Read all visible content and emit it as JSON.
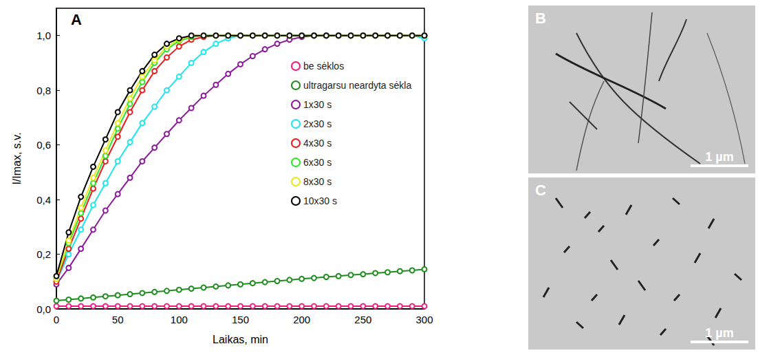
{
  "chart_data": {
    "type": "line",
    "title": "A",
    "x_label": "Laikas, min",
    "y_label": "I/Imax, s.v.",
    "x": [
      0,
      10,
      20,
      30,
      40,
      50,
      60,
      70,
      80,
      90,
      100,
      110,
      120,
      130,
      140,
      150,
      160,
      170,
      180,
      190,
      200,
      210,
      220,
      230,
      240,
      250,
      260,
      270,
      280,
      290,
      300
    ],
    "series": [
      {
        "name": "be sėklos",
        "color": "#ee1b80",
        "marker": "circle_open",
        "values": [
          0.01,
          0.01,
          0.01,
          0.01,
          0.01,
          0.01,
          0.01,
          0.01,
          0.01,
          0.01,
          0.01,
          0.01,
          0.01,
          0.01,
          0.01,
          0.01,
          0.01,
          0.01,
          0.01,
          0.01,
          0.01,
          0.01,
          0.01,
          0.01,
          0.01,
          0.01,
          0.01,
          0.01,
          0.01,
          0.01,
          0.01
        ]
      },
      {
        "name": "ultragarsu neardyta sėkla",
        "color": "#1e8c1e",
        "marker": "circle_open",
        "values": [
          0.03,
          0.034,
          0.038,
          0.042,
          0.046,
          0.05,
          0.054,
          0.058,
          0.062,
          0.066,
          0.07,
          0.074,
          0.078,
          0.082,
          0.086,
          0.09,
          0.094,
          0.098,
          0.102,
          0.106,
          0.11,
          0.113,
          0.117,
          0.12,
          0.124,
          0.127,
          0.131,
          0.134,
          0.138,
          0.141,
          0.145
        ]
      },
      {
        "name": "1x30 s",
        "color": "#8b1a9b",
        "marker": "circle_open",
        "values": [
          0.09,
          0.15,
          0.22,
          0.29,
          0.36,
          0.42,
          0.48,
          0.54,
          0.59,
          0.64,
          0.69,
          0.735,
          0.78,
          0.82,
          0.86,
          0.895,
          0.925,
          0.95,
          0.97,
          0.985,
          0.995,
          1.0,
          1.0,
          1.0,
          1.0,
          1.0,
          1.0,
          1.0,
          1.0,
          1.0,
          1.0
        ]
      },
      {
        "name": "2x30 s",
        "color": "#1ee6ee",
        "marker": "circle_open",
        "values": [
          0.1,
          0.2,
          0.29,
          0.38,
          0.46,
          0.54,
          0.61,
          0.68,
          0.74,
          0.8,
          0.85,
          0.9,
          0.94,
          0.97,
          0.99,
          1.0,
          1.0,
          1.0,
          1.0,
          1.0,
          1.0,
          1.0,
          1.0,
          1.0,
          1.0,
          1.0,
          1.0,
          1.0,
          1.0,
          1.0,
          0.99
        ]
      },
      {
        "name": "4x30 s",
        "color": "#ee1c1c",
        "marker": "circle_open",
        "values": [
          0.1,
          0.22,
          0.33,
          0.44,
          0.54,
          0.63,
          0.72,
          0.8,
          0.87,
          0.92,
          0.96,
          0.985,
          0.995,
          1.0,
          1.0,
          1.0,
          1.0,
          1.0,
          1.0,
          1.0,
          1.0,
          1.0,
          1.0,
          1.0,
          1.0,
          1.0,
          1.0,
          1.0,
          1.0,
          1.0,
          1.0
        ]
      },
      {
        "name": "6x30 s",
        "color": "#2ee62e",
        "marker": "circle_open",
        "values": [
          0.11,
          0.24,
          0.35,
          0.46,
          0.56,
          0.66,
          0.75,
          0.83,
          0.9,
          0.95,
          0.98,
          0.995,
          1.0,
          1.0,
          1.0,
          1.0,
          1.0,
          1.0,
          1.0,
          1.0,
          1.0,
          1.0,
          1.0,
          1.0,
          1.0,
          1.0,
          1.0,
          1.0,
          1.0,
          1.0,
          1.0
        ]
      },
      {
        "name": "8x30 s",
        "color": "#e8e81a",
        "marker": "circle_open",
        "values": [
          0.11,
          0.25,
          0.37,
          0.48,
          0.58,
          0.68,
          0.77,
          0.85,
          0.91,
          0.96,
          0.985,
          1.0,
          1.0,
          1.0,
          1.0,
          1.0,
          1.0,
          1.0,
          1.0,
          1.0,
          1.0,
          1.0,
          1.0,
          1.0,
          1.0,
          1.0,
          1.0,
          1.0,
          1.0,
          1.0,
          1.0
        ]
      },
      {
        "name": "10x30 s",
        "color": "#000000",
        "marker": "circle_open",
        "values": [
          0.12,
          0.28,
          0.41,
          0.52,
          0.62,
          0.72,
          0.8,
          0.87,
          0.93,
          0.97,
          0.99,
          1.0,
          1.0,
          1.0,
          1.0,
          1.0,
          1.0,
          1.0,
          1.0,
          1.0,
          1.0,
          1.0,
          1.0,
          1.0,
          1.0,
          1.0,
          1.0,
          1.0,
          1.0,
          1.0,
          1.0
        ]
      }
    ],
    "xlim": [
      0,
      300
    ],
    "xticks": [
      0,
      50,
      100,
      150,
      200,
      250,
      300
    ],
    "ylim": [
      0,
      1.1
    ],
    "yticks": [
      {
        "value": 0,
        "label": "0,0"
      },
      {
        "value": 0.2,
        "label": "0,2"
      },
      {
        "value": 0.4,
        "label": "0,4"
      },
      {
        "value": 0.6,
        "label": "0,6"
      },
      {
        "value": 0.8,
        "label": "0,8"
      },
      {
        "value": 1.0,
        "label": "1,0"
      }
    ],
    "grid": false,
    "legend": "right"
  },
  "images": [
    {
      "letter": "B",
      "scale_bar": "1 µm"
    },
    {
      "letter": "C",
      "scale_bar": "1 µm"
    }
  ]
}
